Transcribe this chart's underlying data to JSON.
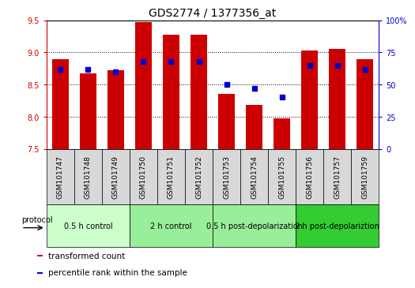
{
  "title": "GDS2774 / 1377356_at",
  "samples": [
    "GSM101747",
    "GSM101748",
    "GSM101749",
    "GSM101750",
    "GSM101751",
    "GSM101752",
    "GSM101753",
    "GSM101754",
    "GSM101755",
    "GSM101756",
    "GSM101757",
    "GSM101759"
  ],
  "bar_values": [
    8.9,
    8.68,
    8.72,
    9.47,
    9.28,
    9.28,
    8.35,
    8.18,
    7.97,
    9.03,
    9.05,
    8.9
  ],
  "percentile_values": [
    62,
    62,
    60,
    68,
    68,
    68,
    50,
    47,
    40,
    65,
    65,
    62
  ],
  "bar_bottom": 7.5,
  "ylim_left": [
    7.5,
    9.5
  ],
  "ylim_right": [
    0,
    100
  ],
  "yticks_left": [
    7.5,
    8.0,
    8.5,
    9.0,
    9.5
  ],
  "yticks_right": [
    0,
    25,
    50,
    75,
    100
  ],
  "ytick_labels_right": [
    "0",
    "25",
    "50",
    "75",
    "100%"
  ],
  "grid_values": [
    8.0,
    8.5,
    9.0
  ],
  "bar_color": "#CC0000",
  "blue_color": "#0000CC",
  "bar_width": 0.6,
  "groups": [
    {
      "label": "0.5 h control",
      "start": 0,
      "end": 3,
      "color": "#ccffcc"
    },
    {
      "label": "2 h control",
      "start": 3,
      "end": 6,
      "color": "#99ee99"
    },
    {
      "label": "0.5 h post-depolarization",
      "start": 6,
      "end": 9,
      "color": "#99ee99"
    },
    {
      "label": "2 h post-depolariztion",
      "start": 9,
      "end": 12,
      "color": "#33cc33"
    }
  ],
  "protocol_label": "protocol",
  "legend_items": [
    {
      "label": "transformed count",
      "color": "#CC0000"
    },
    {
      "label": "percentile rank within the sample",
      "color": "#0000CC"
    }
  ],
  "left_axis_color": "#CC0000",
  "right_axis_color": "#0000CC",
  "sample_box_color": "#d8d8d8",
  "fig_bg": "#ffffff",
  "plot_bg": "#ffffff",
  "tick_label_size": 7,
  "title_fontsize": 10,
  "sample_fontsize": 6.5,
  "group_fontsize": 7,
  "legend_fontsize": 7.5
}
